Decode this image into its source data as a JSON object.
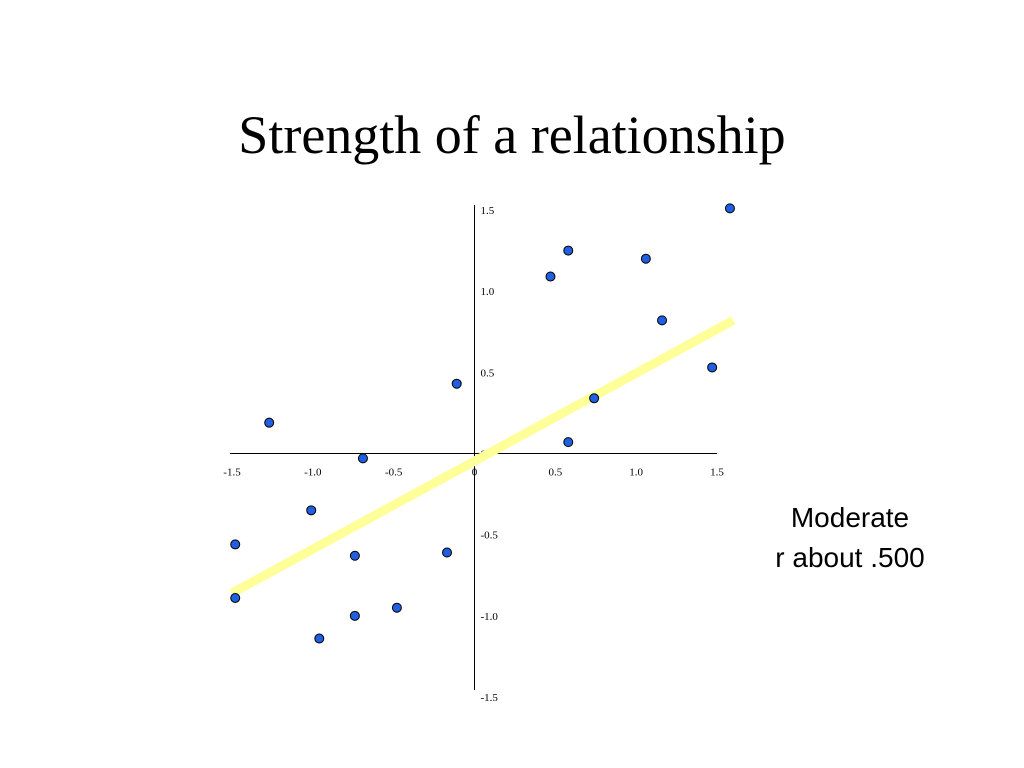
{
  "chart_data": {
    "type": "scatter",
    "title": "Strength of a relationship",
    "annotation": [
      "Moderate",
      "r about .500"
    ],
    "x": [
      1.58,
      0.58,
      0.47,
      1.06,
      1.16,
      1.47,
      0.74,
      0.58,
      -0.11,
      -1.27,
      -0.69,
      -1.01,
      -1.48,
      -0.74,
      -0.17,
      -1.48,
      -0.74,
      -0.48,
      -0.96
    ],
    "values": [
      1.51,
      1.25,
      1.09,
      1.2,
      0.82,
      0.53,
      0.34,
      0.07,
      0.43,
      0.19,
      -0.03,
      -0.35,
      -0.56,
      -0.63,
      -0.61,
      -0.89,
      -1.0,
      -0.95,
      -1.14
    ],
    "color": "#1f5fe0",
    "trend_line": {
      "x": [
        -1.5,
        1.6
      ],
      "y": [
        -0.86,
        0.82
      ],
      "color": "#ffff99"
    },
    "xlim": [
      -1.5,
      1.5
    ],
    "ylim": [
      -1.5,
      1.5
    ],
    "xticks": [
      -1.5,
      {
        "value": -1.0,
        "label": "-1.0"
      },
      -0.5,
      0,
      0.5,
      {
        "value": 1.0,
        "label": "1.0"
      },
      1.5
    ],
    "yticks": [
      1.5,
      {
        "value": 1.0,
        "label": "1.0"
      },
      0.5,
      0,
      -0.5,
      {
        "value": -1.0,
        "label": "-1.0"
      },
      -1.5
    ]
  }
}
